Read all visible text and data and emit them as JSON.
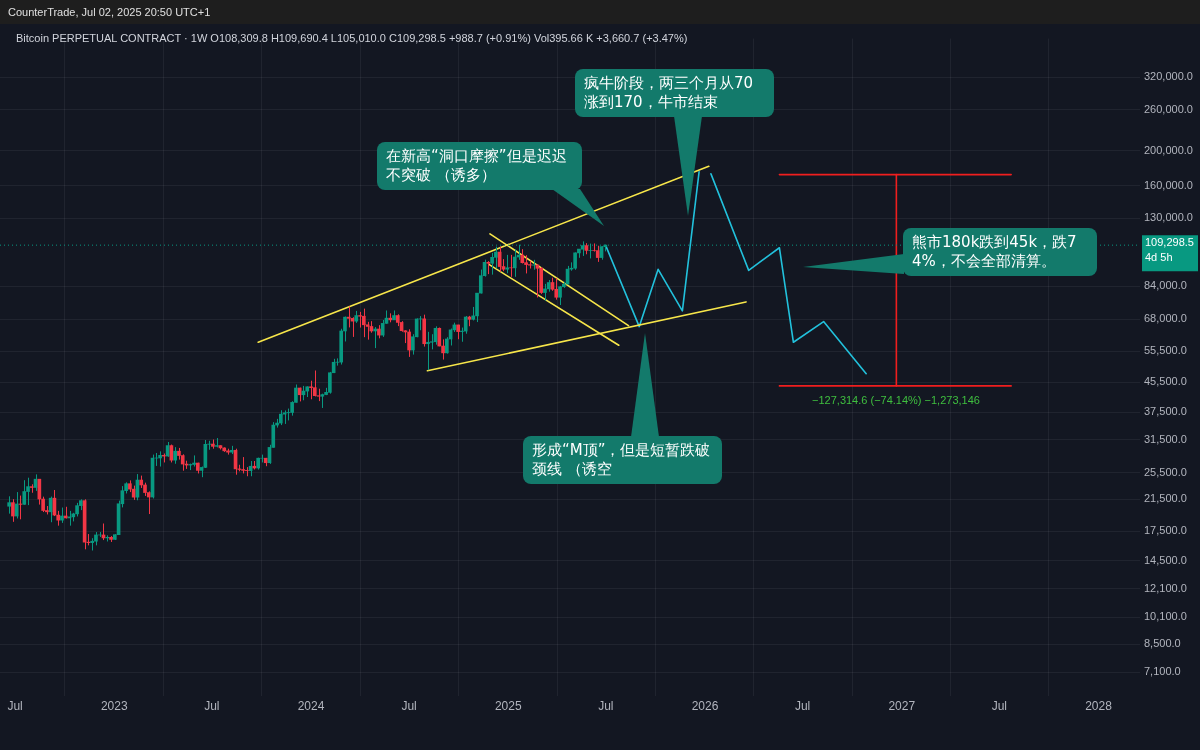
{
  "chart_data": {
    "type": "candlestick",
    "title": "CounterTrade, Jul 02, 2025 20:50 UTC+1",
    "subtitle": "Bitcoin PERPETUAL CONTRACT · 1W  O108,309.8 H109,690.4 L105,010.0 C109,298.5 +988.7 (+0.91%) Vol395.66 K +3,660.7 (+3.47%)",
    "x": [
      "2022-06-20",
      "2022-06-27",
      "2022-07-04",
      "2022-07-11",
      "2022-07-18",
      "2022-07-25",
      "2022-08-01",
      "2022-08-08",
      "2022-08-15",
      "2022-08-22",
      "2022-08-29",
      "2022-09-05",
      "2022-09-12",
      "2022-09-19",
      "2022-09-26",
      "2022-10-03",
      "2022-10-10",
      "2022-10-17",
      "2022-10-24",
      "2022-10-31",
      "2022-11-07",
      "2022-11-14",
      "2022-11-21",
      "2022-11-28",
      "2022-12-05",
      "2022-12-12",
      "2022-12-19",
      "2022-12-26",
      "2023-01-02",
      "2023-01-09",
      "2023-01-16",
      "2023-01-23",
      "2023-01-30",
      "2023-02-06",
      "2023-02-13",
      "2023-02-20",
      "2023-02-27",
      "2023-03-06",
      "2023-03-13",
      "2023-03-20",
      "2023-03-27",
      "2023-04-03",
      "2023-04-10",
      "2023-04-17",
      "2023-04-24",
      "2023-05-01",
      "2023-05-08",
      "2023-05-15",
      "2023-05-22",
      "2023-05-29",
      "2023-06-05",
      "2023-06-12",
      "2023-06-19",
      "2023-06-26",
      "2023-07-03",
      "2023-07-10",
      "2023-07-17",
      "2023-07-24",
      "2023-07-31",
      "2023-08-07",
      "2023-08-14",
      "2023-08-21",
      "2023-08-28",
      "2023-09-04",
      "2023-09-11",
      "2023-09-18",
      "2023-09-25",
      "2023-10-02",
      "2023-10-09",
      "2023-10-16",
      "2023-10-23",
      "2023-10-30",
      "2023-11-06",
      "2023-11-13",
      "2023-11-20",
      "2023-11-27",
      "2023-12-04",
      "2023-12-11",
      "2023-12-18",
      "2023-12-25",
      "2024-01-01",
      "2024-01-08",
      "2024-01-15",
      "2024-01-22",
      "2024-01-29",
      "2024-02-05",
      "2024-02-12",
      "2024-02-19",
      "2024-02-26",
      "2024-03-04",
      "2024-03-11",
      "2024-03-18",
      "2024-03-25",
      "2024-04-01",
      "2024-04-08",
      "2024-04-15",
      "2024-04-22",
      "2024-04-29",
      "2024-05-06",
      "2024-05-13",
      "2024-05-20",
      "2024-05-27",
      "2024-06-03",
      "2024-06-10",
      "2024-06-17",
      "2024-06-24",
      "2024-07-01",
      "2024-07-08",
      "2024-07-15",
      "2024-07-22",
      "2024-07-29",
      "2024-08-05",
      "2024-08-12",
      "2024-08-19",
      "2024-08-26",
      "2024-09-02",
      "2024-09-09",
      "2024-09-16",
      "2024-09-23",
      "2024-09-30",
      "2024-10-07",
      "2024-10-14",
      "2024-10-21",
      "2024-10-28",
      "2024-11-04",
      "2024-11-11",
      "2024-11-18",
      "2024-11-25",
      "2024-12-02",
      "2024-12-09",
      "2024-12-16",
      "2024-12-23",
      "2024-12-30",
      "2025-01-06",
      "2025-01-13",
      "2025-01-20",
      "2025-01-27",
      "2025-02-03",
      "2025-02-10",
      "2025-02-17",
      "2025-02-24",
      "2025-03-03",
      "2025-03-10",
      "2025-03-17",
      "2025-03-24",
      "2025-03-31",
      "2025-04-07",
      "2025-04-14",
      "2025-04-21",
      "2025-04-28",
      "2025-05-05",
      "2025-05-12",
      "2025-05-19",
      "2025-05-26",
      "2025-06-02",
      "2025-06-09",
      "2025-06-16",
      "2025-06-23",
      "2025-06-30"
    ],
    "ohlc": [
      [
        20550,
        21900,
        19600,
        21030
      ],
      [
        21030,
        21500,
        18600,
        19300
      ],
      [
        19300,
        22500,
        19000,
        20850
      ],
      [
        20850,
        22000,
        18900,
        20800
      ],
      [
        20800,
        24280,
        20750,
        22580
      ],
      [
        22580,
        24670,
        20700,
        23300
      ],
      [
        23300,
        23650,
        22400,
        23170
      ],
      [
        23170,
        25200,
        22670,
        24440
      ],
      [
        24440,
        24450,
        20770,
        21520
      ],
      [
        21520,
        21850,
        19800,
        20000
      ],
      [
        20000,
        20580,
        19500,
        19830
      ],
      [
        19830,
        21860,
        18550,
        21640
      ],
      [
        21640,
        22800,
        19300,
        19420
      ],
      [
        19420,
        19950,
        18150,
        18800
      ],
      [
        18800,
        20380,
        18470,
        19310
      ],
      [
        19310,
        20480,
        19000,
        19070
      ],
      [
        19070,
        19950,
        18150,
        19200
      ],
      [
        19200,
        19700,
        18650,
        19570
      ],
      [
        19570,
        21000,
        19250,
        20630
      ],
      [
        20630,
        21480,
        20050,
        21300
      ],
      [
        21300,
        21480,
        15600,
        16330
      ],
      [
        16330,
        17200,
        16000,
        16280
      ],
      [
        16280,
        16750,
        15480,
        16430
      ],
      [
        16430,
        17420,
        16000,
        17100
      ],
      [
        17100,
        17420,
        16880,
        17100
      ],
      [
        17100,
        18400,
        16550,
        16780
      ],
      [
        16780,
        17060,
        16400,
        16840
      ],
      [
        16840,
        16980,
        16350,
        16620
      ],
      [
        16620,
        17180,
        16560,
        17130
      ],
      [
        17130,
        21300,
        17100,
        20880
      ],
      [
        20880,
        23380,
        20400,
        22700
      ],
      [
        22700,
        23950,
        22300,
        23740
      ],
      [
        23740,
        24250,
        22500,
        22930
      ],
      [
        22930,
        23450,
        21400,
        21780
      ],
      [
        21780,
        25250,
        21350,
        24300
      ],
      [
        24300,
        25000,
        23100,
        23550
      ],
      [
        23550,
        23900,
        21950,
        22430
      ],
      [
        22430,
        22600,
        19550,
        21800
      ],
      [
        21800,
        28600,
        21600,
        27970
      ],
      [
        27970,
        28900,
        26600,
        27990
      ],
      [
        27990,
        29200,
        26500,
        28470
      ],
      [
        28470,
        28800,
        27200,
        28330
      ],
      [
        28330,
        31000,
        28200,
        30300
      ],
      [
        30300,
        30500,
        27200,
        27600
      ],
      [
        27600,
        30000,
        26970,
        29230
      ],
      [
        29230,
        29850,
        27700,
        28430
      ],
      [
        28430,
        28650,
        25800,
        26920
      ],
      [
        26920,
        27500,
        26100,
        26750
      ],
      [
        26750,
        27000,
        25900,
        26850
      ],
      [
        26850,
        28450,
        26500,
        27100
      ],
      [
        27100,
        27150,
        25350,
        25850
      ],
      [
        25850,
        26500,
        24750,
        26350
      ],
      [
        26350,
        31400,
        26250,
        30550
      ],
      [
        30550,
        31250,
        29500,
        30600
      ],
      [
        30600,
        31500,
        29700,
        30150
      ],
      [
        30150,
        31800,
        29950,
        30300
      ],
      [
        30300,
        30350,
        29550,
        29850
      ],
      [
        29850,
        29950,
        29100,
        29300
      ],
      [
        29300,
        29700,
        28600,
        29050
      ],
      [
        29050,
        30250,
        28700,
        29400
      ],
      [
        29400,
        29700,
        25150,
        26100
      ],
      [
        26100,
        26800,
        25700,
        26000
      ],
      [
        26000,
        28150,
        25350,
        25850
      ],
      [
        25850,
        26400,
        24900,
        25800
      ],
      [
        25800,
        27450,
        24900,
        26550
      ],
      [
        26550,
        27450,
        26000,
        26250
      ],
      [
        26250,
        28050,
        25990,
        27950
      ],
      [
        27950,
        28600,
        27200,
        27950
      ],
      [
        27950,
        28000,
        26550,
        27150
      ],
      [
        27150,
        30450,
        26950,
        29950
      ],
      [
        29950,
        35200,
        29900,
        34550
      ],
      [
        34550,
        35950,
        34000,
        35000
      ],
      [
        35000,
        38000,
        34550,
        37050
      ],
      [
        37050,
        37950,
        34800,
        37380
      ],
      [
        37380,
        38400,
        35600,
        37450
      ],
      [
        37450,
        40250,
        36700,
        39950
      ],
      [
        39950,
        44800,
        39900,
        43800
      ],
      [
        43800,
        43900,
        40200,
        41950
      ],
      [
        41950,
        44400,
        40500,
        42950
      ],
      [
        42950,
        44250,
        41350,
        44150
      ],
      [
        44150,
        45900,
        40750,
        43900
      ],
      [
        43900,
        49000,
        41500,
        41700
      ],
      [
        41700,
        43600,
        40280,
        41550
      ],
      [
        41550,
        42250,
        38550,
        42000
      ],
      [
        42000,
        43850,
        41850,
        42600
      ],
      [
        42600,
        48550,
        42250,
        48300
      ],
      [
        48300,
        52800,
        48200,
        51650
      ],
      [
        51650,
        52950,
        50550,
        51700
      ],
      [
        51700,
        64000,
        50900,
        63100
      ],
      [
        63100,
        69200,
        59000,
        68950
      ],
      [
        68950,
        73800,
        64550,
        68400
      ],
      [
        68400,
        68900,
        60750,
        67200
      ],
      [
        67200,
        71750,
        66450,
        69650
      ],
      [
        69650,
        71300,
        64500,
        69350
      ],
      [
        69350,
        72800,
        60650,
        65650
      ],
      [
        65650,
        66900,
        59700,
        64950
      ],
      [
        64950,
        67200,
        62400,
        63100
      ],
      [
        63100,
        64700,
        56550,
        63900
      ],
      [
        63900,
        65500,
        60200,
        61450
      ],
      [
        61450,
        67700,
        60750,
        66250
      ],
      [
        66250,
        71950,
        66100,
        68500
      ],
      [
        68500,
        70650,
        66700,
        67750
      ],
      [
        67750,
        71950,
        67700,
        69650
      ],
      [
        69650,
        70200,
        65100,
        66650
      ],
      [
        66650,
        67200,
        62800,
        63200
      ],
      [
        63200,
        63400,
        58400,
        62700
      ],
      [
        62700,
        63800,
        53450,
        55850
      ],
      [
        55850,
        61800,
        54250,
        60800
      ],
      [
        60800,
        68400,
        60600,
        68150
      ],
      [
        68150,
        69400,
        63400,
        68200
      ],
      [
        68200,
        70050,
        57100,
        58150
      ],
      [
        58150,
        62750,
        49100,
        58700
      ],
      [
        58700,
        61800,
        56100,
        58900
      ],
      [
        58900,
        65000,
        57800,
        64200
      ],
      [
        64200,
        64500,
        57200,
        57300
      ],
      [
        57300,
        59800,
        52550,
        54850
      ],
      [
        54850,
        60650,
        54600,
        59950
      ],
      [
        59950,
        64100,
        57500,
        63550
      ],
      [
        63550,
        66550,
        62700,
        65600
      ],
      [
        65600,
        65650,
        59850,
        62850
      ],
      [
        62850,
        64500,
        58900,
        63050
      ],
      [
        63050,
        69450,
        62000,
        69000
      ],
      [
        69000,
        69500,
        65050,
        68000
      ],
      [
        68000,
        73600,
        67500,
        69500
      ],
      [
        69500,
        80450,
        66800,
        80400
      ],
      [
        80400,
        93500,
        80200,
        89900
      ],
      [
        89900,
        99600,
        89350,
        97900
      ],
      [
        97900,
        98700,
        90800,
        97300
      ],
      [
        97300,
        104000,
        90500,
        101100
      ],
      [
        101100,
        108300,
        94200,
        104500
      ],
      [
        104500,
        108400,
        92200,
        95300
      ],
      [
        95300,
        99950,
        92550,
        93700
      ],
      [
        93700,
        102700,
        91300,
        94550
      ],
      [
        94550,
        102700,
        89250,
        94500
      ],
      [
        94500,
        106400,
        89250,
        101300
      ],
      [
        101300,
        109600,
        99500,
        102600
      ],
      [
        102600,
        106500,
        97200,
        97700
      ],
      [
        97700,
        102500,
        91200,
        96500
      ],
      [
        96500,
        98800,
        94100,
        96150
      ],
      [
        96150,
        99500,
        93400,
        96300
      ],
      [
        96300,
        96500,
        78200,
        94250
      ],
      [
        94250,
        95000,
        80000,
        80700
      ],
      [
        80700,
        85300,
        76600,
        82600
      ],
      [
        82600,
        87450,
        81150,
        86050
      ],
      [
        86050,
        88750,
        81600,
        82400
      ],
      [
        82400,
        88500,
        77100,
        78300
      ],
      [
        78300,
        84200,
        74500,
        83750
      ],
      [
        83750,
        86450,
        83150,
        85200
      ],
      [
        85200,
        95700,
        85100,
        93750
      ],
      [
        93750,
        97900,
        92800,
        94300
      ],
      [
        94300,
        104300,
        93350,
        104000
      ],
      [
        104000,
        106600,
        100800,
        106500
      ],
      [
        106500,
        111980,
        102000,
        109000
      ],
      [
        109000,
        110700,
        103100,
        105700
      ],
      [
        105700,
        110400,
        100400,
        105700
      ],
      [
        105700,
        110500,
        104900,
        105600
      ],
      [
        105600,
        108900,
        98200,
        100950
      ],
      [
        100950,
        108500,
        99600,
        108350
      ],
      [
        108309.8,
        109690.4,
        105010.0,
        109298.5
      ]
    ],
    "series": [
      {
        "type": "line",
        "color": "#f7e64a",
        "x": [
          "2023-09-25",
          "2026-01-08"
        ],
        "values": [
          58700,
          181000
        ]
      },
      {
        "type": "line",
        "color": "#f7e64a",
        "x": [
          "2024-08-04",
          "2026-03-18"
        ],
        "values": [
          48900,
          76000
        ]
      },
      {
        "type": "line",
        "color": "#f7e64a",
        "x": [
          "2024-11-28",
          "2025-08-12"
        ],
        "values": [
          117500,
          65300
        ]
      },
      {
        "type": "line",
        "color": "#f7e64a",
        "x": [
          "2024-11-26",
          "2025-07-25"
        ],
        "values": [
          96600,
          57600
        ]
      },
      {
        "type": "line",
        "color": "#22c1dc",
        "x": [
          "2025-07-01",
          "2025-09-01",
          "2025-10-06",
          "2025-11-20",
          "2025-12-21"
        ],
        "values": [
          108800,
          64900,
          93600,
          71800,
          174700
        ]
      },
      {
        "type": "line",
        "color": "#22c1dc",
        "x": [
          "2026-01-12",
          "2026-03-23",
          "2026-05-19",
          "2026-06-14",
          "2026-08-09",
          "2026-10-27"
        ],
        "values": [
          172500,
          93000,
          107500,
          58700,
          67000,
          48000
        ]
      },
      {
        "type": "line",
        "color": "#f01e1e",
        "x": [
          "2026-05-19",
          "2027-07-23"
        ],
        "values": [
          171700,
          171700
        ]
      },
      {
        "type": "line",
        "color": "#f01e1e",
        "x": [
          "2026-05-19",
          "2027-07-23"
        ],
        "values": [
          44400,
          44400
        ]
      },
      {
        "type": "line",
        "color": "#f01e1e",
        "x": [
          "2026-12-22",
          "2026-12-22"
        ],
        "values": [
          171700,
          44400
        ]
      }
    ],
    "xlim": [
      "2022-06-03",
      "2028-03-18"
    ],
    "xticks": [
      {
        "value": "2022-07-01",
        "label": "Jul"
      },
      {
        "value": "2023-01-01",
        "label": "2023"
      },
      {
        "value": "2023-07-01",
        "label": "Jul"
      },
      {
        "value": "2024-01-01",
        "label": "2024"
      },
      {
        "value": "2024-07-01",
        "label": "Jul"
      },
      {
        "value": "2025-01-01",
        "label": "2025"
      },
      {
        "value": "2025-07-01",
        "label": "Jul"
      },
      {
        "value": "2026-01-01",
        "label": "2026"
      },
      {
        "value": "2026-07-01",
        "label": "Jul"
      },
      {
        "value": "2027-01-01",
        "label": "2027"
      },
      {
        "value": "2027-07-01",
        "label": "Jul"
      },
      {
        "value": "2028-01-01",
        "label": "2028"
      }
    ],
    "ylim": [
      6100,
      410000
    ],
    "yticks": [
      {
        "value": 7100,
        "label": "7,100.0"
      },
      {
        "value": 8500,
        "label": "8,500.0"
      },
      {
        "value": 10100,
        "label": "10,100.0"
      },
      {
        "value": 12100,
        "label": "12,100.0"
      },
      {
        "value": 14500,
        "label": "14,500.0"
      },
      {
        "value": 17500,
        "label": "17,500.0"
      },
      {
        "value": 21500,
        "label": "21,500.0"
      },
      {
        "value": 25500,
        "label": "25,500.0"
      },
      {
        "value": 31500,
        "label": "31,500.0"
      },
      {
        "value": 37500,
        "label": "37,500.0"
      },
      {
        "value": 45500,
        "label": "45,500.0"
      },
      {
        "value": 55500,
        "label": "55,500.0"
      },
      {
        "value": 68000,
        "label": "68,000.0"
      },
      {
        "value": 84000,
        "label": "84,000.0"
      },
      {
        "value": 130000,
        "label": "130,000.0"
      },
      {
        "value": 160000,
        "label": "160,000.0"
      },
      {
        "value": 200000,
        "label": "200,000.0"
      },
      {
        "value": 260000,
        "label": "260,000.0"
      },
      {
        "value": 320000,
        "label": "320,000.0"
      }
    ],
    "log": "y",
    "grid": true,
    "ref_lines": [
      {
        "axis": "y",
        "value": 109298.5,
        "label": "109,298.5\n4d 5h",
        "color": "#089981",
        "line_style": "dotted"
      }
    ],
    "annotations": [
      "在新高“洞口摩擦”但是迟迟不突破 （诱多）",
      "疯牛阶段，两三个月从70涨到170，牛市结束",
      "熊市180k跌到45k，跌74%，不会全部清算。",
      "形成“M顶”，但是短暂跌破颈线 （诱空",
      "−127,314.6 (−74.14%) −1,273,146"
    ]
  }
}
